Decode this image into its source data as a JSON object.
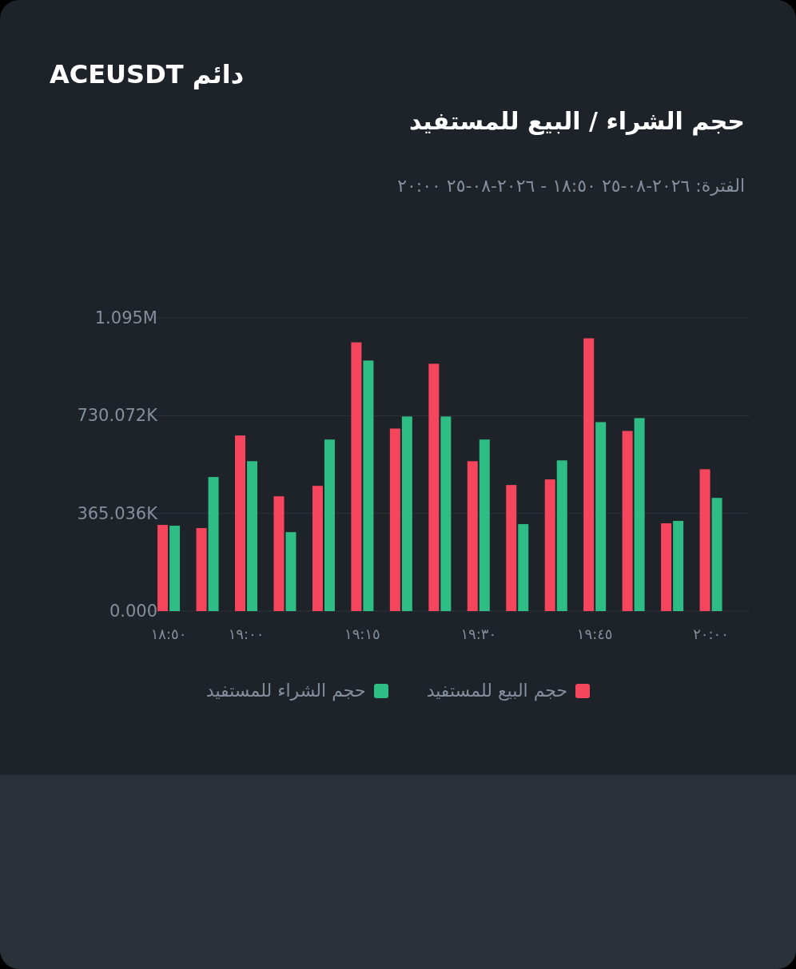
{
  "chart_data": {
    "type": "bar",
    "title": "دائم ACEUSDT",
    "subtitle": "حجم الشراء / البيع للمستفيد",
    "annotations": [
      "الفترة: ٢٠٢٦-٠٨-٢٥ ١٨:٥٠ - ٢٠٢٦-٠٨-٢٥ ٢٠:٠٠"
    ],
    "x": [
      18.8333,
      18.9167,
      19.0,
      19.0833,
      19.1667,
      19.25,
      19.3333,
      19.4167,
      19.5,
      19.5833,
      19.6667,
      19.75,
      19.8333,
      19.9167,
      20.0
    ],
    "series": [
      {
        "name": "حجم البيع للمستفيد",
        "color": "#f6465d",
        "values": [
          322000,
          310000,
          656000,
          429000,
          468000,
          1004000,
          682000,
          924000,
          560000,
          471000,
          492000,
          1019000,
          673000,
          328000,
          530000
        ]
      },
      {
        "name": "حجم الشراء للمستفيد",
        "color": "#2ebd85",
        "values": [
          319000,
          501000,
          560000,
          295000,
          641000,
          936000,
          727000,
          727000,
          641000,
          325000,
          563000,
          706000,
          721000,
          337000,
          423000
        ]
      }
    ],
    "xlim": [
      18.7833,
      20.0833
    ],
    "xticks": [
      {
        "value": 18.8333,
        "label": "١٨:٥٠"
      },
      {
        "value": 19.0,
        "label": "١٩:٠٠"
      },
      {
        "value": 19.25,
        "label": "١٩:١٥"
      },
      {
        "value": 19.5,
        "label": "١٩:٣٠"
      },
      {
        "value": 19.75,
        "label": "١٩:٤٥"
      },
      {
        "value": 20.0,
        "label": "٢٠:٠٠"
      }
    ],
    "ylim": [
      0,
      1095108
    ],
    "yticks": [
      {
        "value": 0,
        "label": "0.000"
      },
      {
        "value": 365036,
        "label": "365.036K"
      },
      {
        "value": 730072,
        "label": "730.072K"
      },
      {
        "value": 1095108,
        "label": "1.095M"
      }
    ],
    "grid": "y",
    "legend": "bottom"
  }
}
